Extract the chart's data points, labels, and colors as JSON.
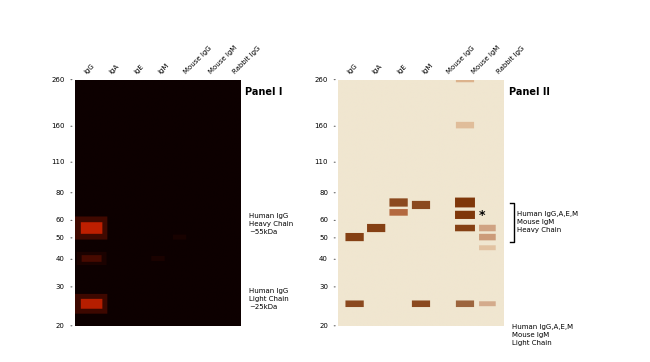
{
  "panel1_title": "Panel I",
  "panel2_title": "Panel II",
  "lane_labels": [
    "IgG",
    "IgA",
    "IgE",
    "IgM",
    "Mouse IgG",
    "Mouse IgM",
    "Rabbit IgG"
  ],
  "mw_markers": [
    260,
    160,
    110,
    80,
    60,
    50,
    40,
    30,
    20
  ],
  "panel1_bg": "#0d0000",
  "panel2_bg": "#f0e6d0",
  "panel1_band_color": "#cc2200",
  "panel2_band_dark": "#7a2e00",
  "panel2_band_mid": "#a04010",
  "panel2_band_light": "#c8804a",
  "fig_width": 6.5,
  "fig_height": 3.62,
  "annotation1_lines": [
    "Human IgG",
    "Heavy Chain",
    "~55kDa"
  ],
  "annotation2_lines": [
    "Human IgG",
    "Light Chain",
    "~25kDa"
  ],
  "annotation3_lines": [
    "Human IgG,A,E,M",
    "Mouse IgM",
    "Heavy Chain"
  ],
  "annotation4_lines": [
    "Human IgG,A,E,M",
    "Mouse IgM",
    "Light Chain"
  ]
}
